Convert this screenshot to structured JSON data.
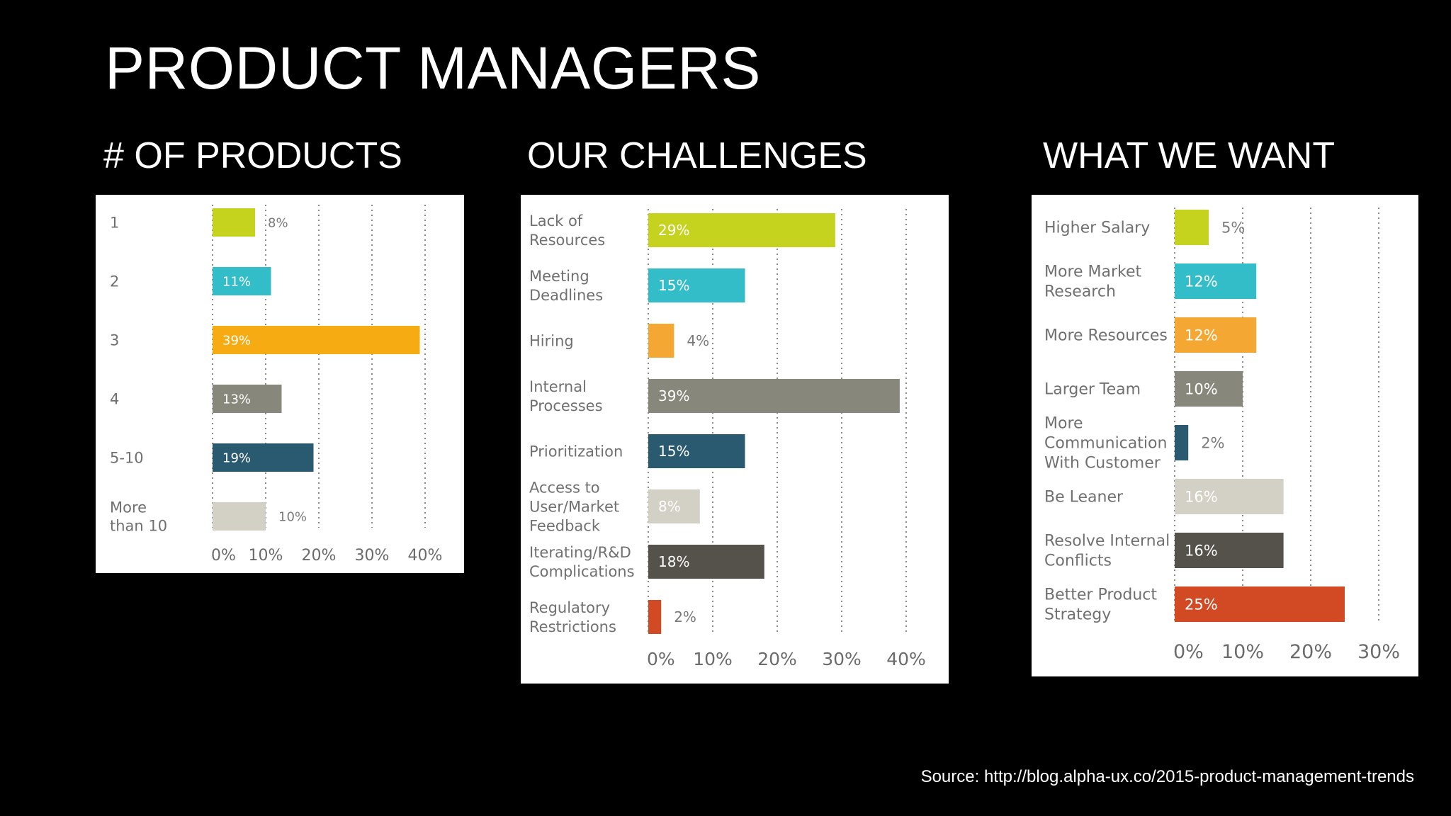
{
  "slide": {
    "title": "PRODUCT MANAGERS",
    "source": "Source: http://blog.alpha-ux.co/2015-product-management-trends"
  },
  "sections": {
    "products": "# OF PRODUCTS",
    "challenges": "OUR CHALLENGES",
    "want": "WHAT WE WANT"
  },
  "chart_data": [
    {
      "type": "bar",
      "orientation": "horizontal",
      "categories": [
        [
          "1"
        ],
        [
          "2"
        ],
        [
          "3"
        ],
        [
          "4"
        ],
        [
          "5-10"
        ],
        [
          "More",
          "than 10"
        ]
      ],
      "values": [
        8,
        11,
        39,
        13,
        19,
        10
      ],
      "colors": [
        "#c5d21e",
        "#33bdc9",
        "#f7ab13",
        "#88877b",
        "#2a5a70",
        "#d3d1c5"
      ],
      "label_inside": [
        false,
        true,
        true,
        true,
        true,
        false
      ],
      "xticks": [
        "0%",
        "10%",
        "20%",
        "30%",
        "40%"
      ],
      "xlim": [
        0,
        40
      ],
      "grid": true
    },
    {
      "type": "bar",
      "orientation": "horizontal",
      "categories": [
        [
          "Lack of",
          "Resources"
        ],
        [
          "Meeting",
          "Deadlines"
        ],
        [
          "Hiring"
        ],
        [
          "Internal",
          "Processes"
        ],
        [
          "Prioritization"
        ],
        [
          "Access to",
          "User/Market",
          "Feedback"
        ],
        [
          "Iterating/R&D",
          "Complications"
        ],
        [
          "Regulatory",
          "Restrictions"
        ]
      ],
      "values": [
        29,
        15,
        4,
        39,
        15,
        8,
        18,
        2
      ],
      "colors": [
        "#c5d21e",
        "#33bdc9",
        "#f4a833",
        "#88877b",
        "#2a5a70",
        "#d3d1c5",
        "#54524a",
        "#d24a24"
      ],
      "label_inside": [
        true,
        true,
        false,
        true,
        true,
        true,
        true,
        false
      ],
      "xticks": [
        "0%",
        "10%",
        "20%",
        "30%",
        "40%"
      ],
      "xlim": [
        0,
        40
      ],
      "grid": true
    },
    {
      "type": "bar",
      "orientation": "horizontal",
      "categories": [
        [
          "Higher Salary"
        ],
        [
          "More Market",
          "Research"
        ],
        [
          "More Resources"
        ],
        [
          "Larger Team"
        ],
        [
          "More",
          "Communication",
          "With Customer"
        ],
        [
          "Be Leaner"
        ],
        [
          "Resolve Internal",
          "Conflicts"
        ],
        [
          "Better Product",
          "Strategy"
        ]
      ],
      "values": [
        5,
        12,
        12,
        10,
        2,
        16,
        16,
        25
      ],
      "colors": [
        "#c5d21e",
        "#33bdc9",
        "#f4a833",
        "#88877b",
        "#2a5a70",
        "#d3d1c5",
        "#54524a",
        "#d24a24"
      ],
      "label_inside": [
        false,
        true,
        true,
        true,
        false,
        true,
        true,
        true
      ],
      "xticks": [
        "0%",
        "10%",
        "20%",
        "30%"
      ],
      "xlim": [
        0,
        30
      ],
      "grid": true
    }
  ]
}
